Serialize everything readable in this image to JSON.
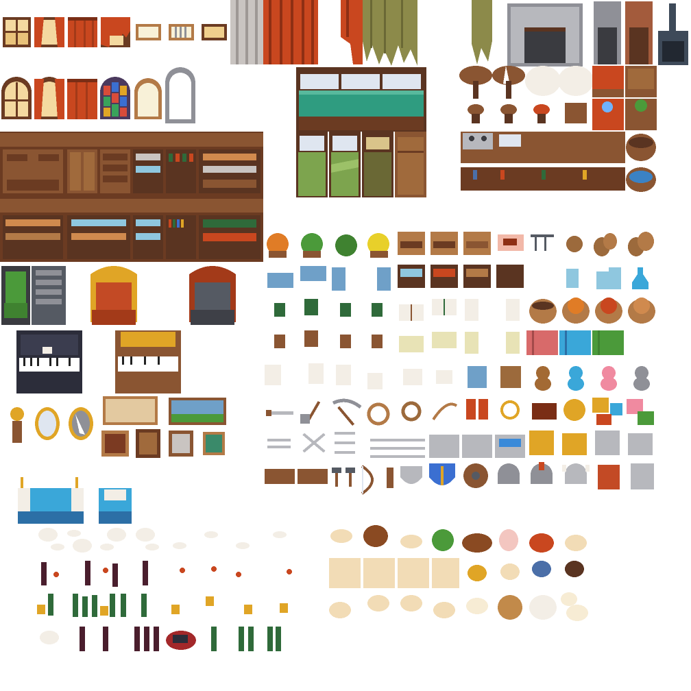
{
  "sheet": {
    "kind": "pixel-art tileset (interior furniture and props)",
    "palette": {
      "wood_dark": "#5a3421",
      "wood": "#8a5532",
      "wood_light": "#b37a47",
      "curtain_red": "#c9471f",
      "curtain_grey": "#c9c4c1",
      "curtain_olive": "#8c8a4a",
      "stone": "#8f9097",
      "stone_light": "#b7b8bd",
      "brick": "#a35b3c",
      "bed_teal": "#2f9c80",
      "bed_green": "#7da44e",
      "upholstery_green": "#4b9a3a",
      "upholstery_red": "#c34a25",
      "upholstery_grey": "#555a63",
      "gold": "#e0a526",
      "glass": "#8fc7df",
      "bottle_green": "#2f6a3a",
      "bottle_wine": "#4a1e2d",
      "porcelain": "#f3eee6",
      "plate_tan": "#f2dcb6"
    },
    "sections": [
      "windows-and-curtains",
      "beds",
      "kitchen-and-fireplaces",
      "shelves-and-cabinets",
      "armchairs",
      "instruments",
      "paintings-and-mirrors",
      "plants-and-storage",
      "books-and-baskets",
      "toys-and-gifts",
      "tools-and-weapons",
      "armor",
      "banners",
      "tea-and-drinks",
      "food-plates"
    ]
  }
}
